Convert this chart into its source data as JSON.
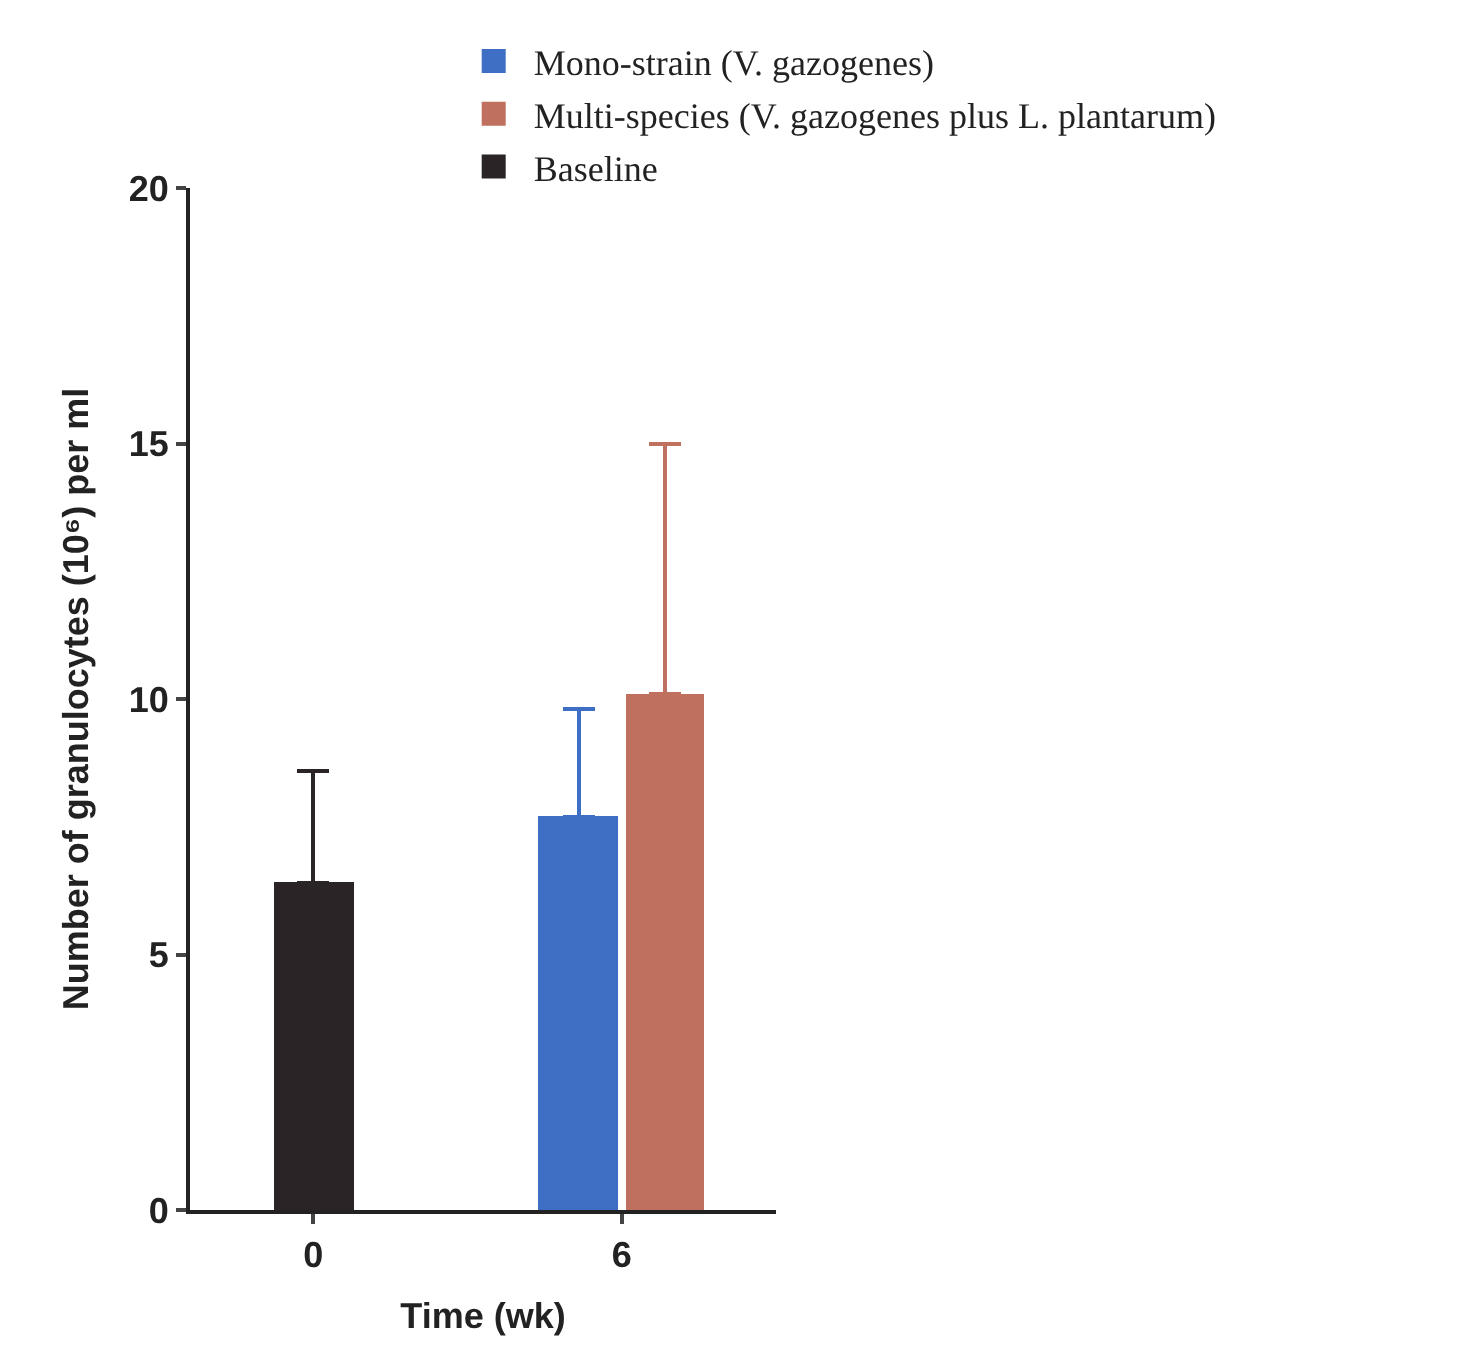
{
  "chart_data": {
    "type": "bar",
    "xlabel": "Time (wk)",
    "ylabel": "Number of granulocytes (10⁶) per ml",
    "categories": [
      "0",
      "6"
    ],
    "series": [
      {
        "name": "Mono-strain (V. gazogenes)",
        "color": "#3f6fc4",
        "values": [
          null,
          7.7
        ],
        "errors": [
          null,
          [
            7.7,
            9.8
          ]
        ]
      },
      {
        "name": "Multi-species (V. gazogenes plus L. plantarum)",
        "color": "#c0705e",
        "values": [
          null,
          10.1
        ],
        "errors": [
          null,
          [
            10.1,
            15.0
          ]
        ]
      },
      {
        "name": "Baseline",
        "color": "#2b2427",
        "values": [
          6.4,
          null
        ],
        "errors": [
          [
            6.4,
            8.6
          ],
          null
        ]
      }
    ],
    "ylim": [
      0,
      20
    ],
    "yticks": [
      0,
      5,
      10,
      15,
      20
    ],
    "legend": "top"
  }
}
